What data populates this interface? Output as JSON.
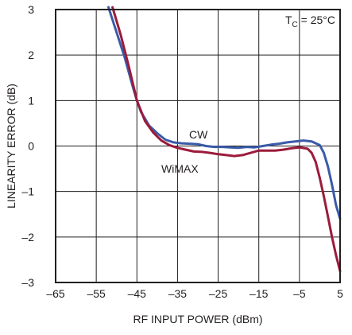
{
  "chart_data": {
    "type": "line",
    "xlabel": "RF INPUT POWER (dBm)",
    "ylabel": "LINEARITY ERROR (dB)",
    "xlim": [
      -65,
      5
    ],
    "ylim": [
      -3,
      3
    ],
    "x_ticks": [
      -65,
      -55,
      -45,
      -35,
      -25,
      -15,
      -5,
      5
    ],
    "x_tick_labels": [
      "–65",
      "–55",
      "–45",
      "–35",
      "–25",
      "–15",
      "–5",
      "5"
    ],
    "y_ticks": [
      3,
      2,
      1,
      0,
      -1,
      -2,
      -3
    ],
    "y_tick_labels": [
      "3",
      "2",
      "1",
      "0",
      "–1",
      "–2",
      "–3"
    ],
    "grid": true,
    "annotation": {
      "prefix": "T",
      "subscript": "C",
      "suffix": " = 25°C",
      "placement": "top-right"
    },
    "series": [
      {
        "name": "CW",
        "color": "#3a5ba8",
        "x": [
          -52,
          -50,
          -48,
          -46,
          -45,
          -44,
          -42,
          -40,
          -38,
          -36,
          -34,
          -32,
          -30,
          -28,
          -26,
          -24,
          -22,
          -20,
          -18,
          -16,
          -14,
          -12,
          -10,
          -8,
          -6,
          -4,
          -2,
          0,
          1,
          2,
          3,
          4,
          5
        ],
        "y": [
          3.05,
          2.5,
          1.95,
          1.3,
          1.0,
          0.75,
          0.45,
          0.28,
          0.14,
          0.08,
          0.06,
          0.05,
          0.04,
          0.0,
          -0.02,
          -0.02,
          -0.03,
          -0.04,
          -0.02,
          -0.03,
          0.0,
          0.03,
          0.05,
          0.08,
          0.1,
          0.12,
          0.1,
          0.02,
          -0.15,
          -0.45,
          -0.85,
          -1.3,
          -1.6
        ]
      },
      {
        "name": "WiMAX",
        "color": "#9b1b3b",
        "x": [
          -51,
          -49,
          -47,
          -45,
          -43,
          -41,
          -39,
          -37,
          -35,
          -33,
          -31,
          -29,
          -27,
          -25,
          -23,
          -21,
          -19,
          -17,
          -15,
          -13,
          -11,
          -9,
          -7,
          -5,
          -3,
          -2,
          -1,
          0,
          1,
          2,
          3,
          4,
          5
        ],
        "y": [
          3.05,
          2.45,
          1.75,
          1.0,
          0.55,
          0.3,
          0.12,
          0.02,
          -0.04,
          -0.08,
          -0.12,
          -0.13,
          -0.15,
          -0.18,
          -0.2,
          -0.22,
          -0.2,
          -0.15,
          -0.1,
          -0.1,
          -0.1,
          -0.08,
          -0.05,
          -0.03,
          -0.06,
          -0.15,
          -0.35,
          -0.7,
          -1.1,
          -1.55,
          -2.0,
          -2.4,
          -2.75
        ]
      }
    ]
  }
}
